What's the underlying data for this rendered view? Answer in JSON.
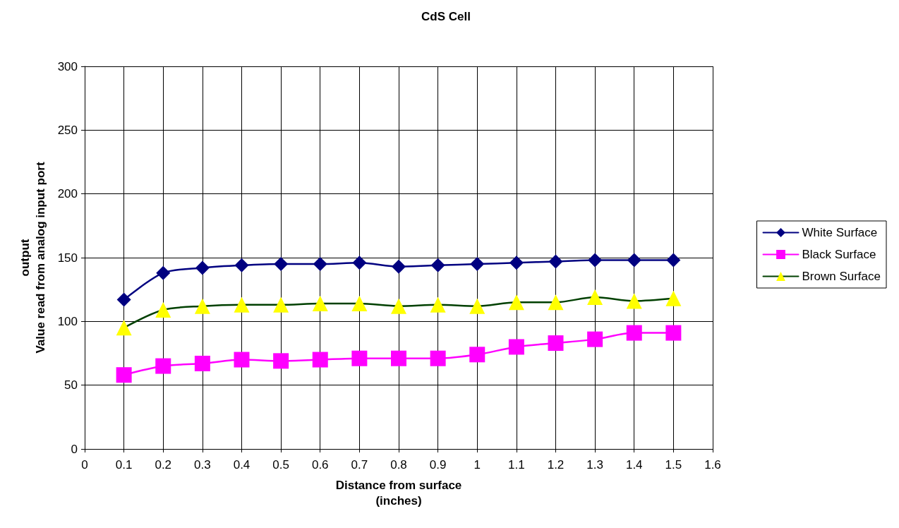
{
  "chart_data": {
    "type": "line",
    "title": "CdS Cell",
    "xlabel": "Distance from surface\n(inches)",
    "ylabel": "output\nValue read from analog input port",
    "x": [
      0.1,
      0.2,
      0.3,
      0.4,
      0.5,
      0.6,
      0.7,
      0.8,
      0.9,
      1,
      1.1,
      1.2,
      1.3,
      1.4,
      1.5
    ],
    "series": [
      {
        "name": "White Surface",
        "color": "#000080",
        "marker": "diamond",
        "values": [
          117,
          138,
          142,
          144,
          145,
          145,
          146,
          143,
          144,
          145,
          146,
          147,
          148,
          148,
          148
        ]
      },
      {
        "name": "Black Surface",
        "color": "#ff00ff",
        "marker": "square",
        "values": [
          58,
          65,
          67,
          70,
          69,
          70,
          71,
          71,
          71,
          74,
          80,
          83,
          86,
          91,
          91
        ]
      },
      {
        "name": "Brown Surface",
        "color": "#004000",
        "colors": [
          "#ffff00",
          "#ffff00",
          "#ffff00",
          "#ffff00",
          "#ffff00",
          "#ffff00",
          "#ffff00",
          "#ffff00",
          "#ffff00",
          "#ffff00",
          "#ffff00",
          "#ffff00",
          "#ffff00",
          "#ffff00",
          "#ffff00"
        ],
        "marker": "triangle",
        "values": [
          95,
          109,
          112,
          113,
          113,
          114,
          114,
          112,
          113,
          112,
          115,
          115,
          119,
          116,
          118
        ]
      }
    ],
    "xlim": [
      0,
      1.6
    ],
    "xticks": [
      0,
      0.1,
      0.2,
      0.3,
      0.4,
      0.5,
      0.6,
      0.7,
      0.8,
      0.9,
      1,
      1.1,
      1.2,
      1.3,
      1.4,
      1.5,
      1.6
    ],
    "ylim": [
      0,
      300
    ],
    "yticks": [
      0,
      50,
      100,
      150,
      200,
      250,
      300
    ],
    "grid": true,
    "legend": "right"
  }
}
